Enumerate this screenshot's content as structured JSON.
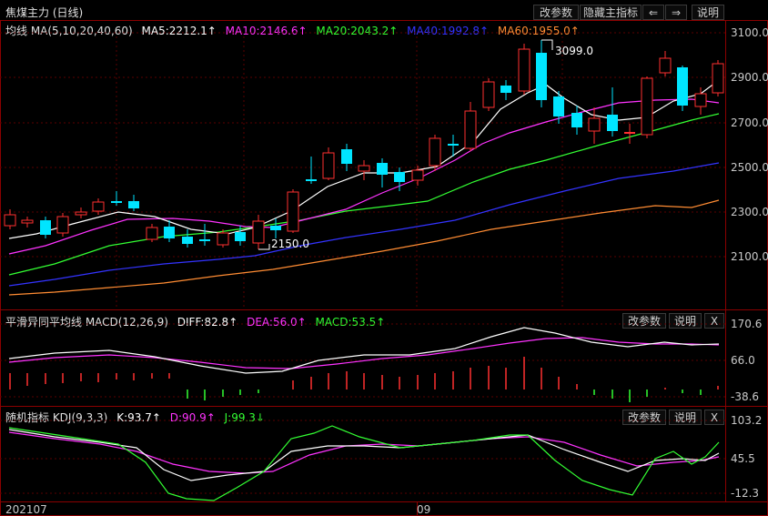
{
  "window": {
    "title": "焦煤主力 (日线)",
    "buttons": {
      "params": "改参数",
      "hide_indicator": "隐藏主指标",
      "prev": "⇐",
      "next": "⇒",
      "help": "说明"
    }
  },
  "main": {
    "legend": {
      "ma_label": "均线 MA(5,10,20,40,60)",
      "ma5": "MA5:2212.1↑",
      "ma10": "MA10:2146.6↑",
      "ma20": "MA20:2043.2↑",
      "ma40": "MA40:1992.8↑",
      "ma60": "MA60:1955.0↑"
    },
    "annotations": {
      "high": "3099.0",
      "low": "2150.0"
    },
    "yticks": [
      "3100.0",
      "2900.0",
      "2700.0",
      "2500.0",
      "2300.0",
      "2100.0"
    ]
  },
  "macd": {
    "legend": {
      "label": "平滑异同平均线 MACD(12,26,9)",
      "diff": "DIFF:82.8↑",
      "dea": "DEA:56.0↑",
      "macd": "MACD:53.5↑"
    },
    "buttons": {
      "params": "改参数",
      "help": "说明",
      "close": "X"
    },
    "yticks": [
      "170.6",
      "66.0",
      "-38.6"
    ]
  },
  "kdj": {
    "legend": {
      "label": "随机指标 KDJ(9,3,3)",
      "k": "K:93.7↑",
      "d": "D:90.9↑",
      "j": "J:99.3↓"
    },
    "buttons": {
      "params": "改参数",
      "help": "说明",
      "close": "X"
    },
    "yticks": [
      "103.2",
      "45.5",
      "-12.3"
    ]
  },
  "xaxis": {
    "labels": [
      "202107",
      "09"
    ]
  },
  "colors": {
    "up": "#ff3030",
    "down": "#00e5ff",
    "ma5": "#ffffff",
    "ma10": "#ff33ff",
    "ma20": "#33ff33",
    "ma40": "#3333ff",
    "ma60": "#ff8c33",
    "grid": "#5a0000"
  }
}
